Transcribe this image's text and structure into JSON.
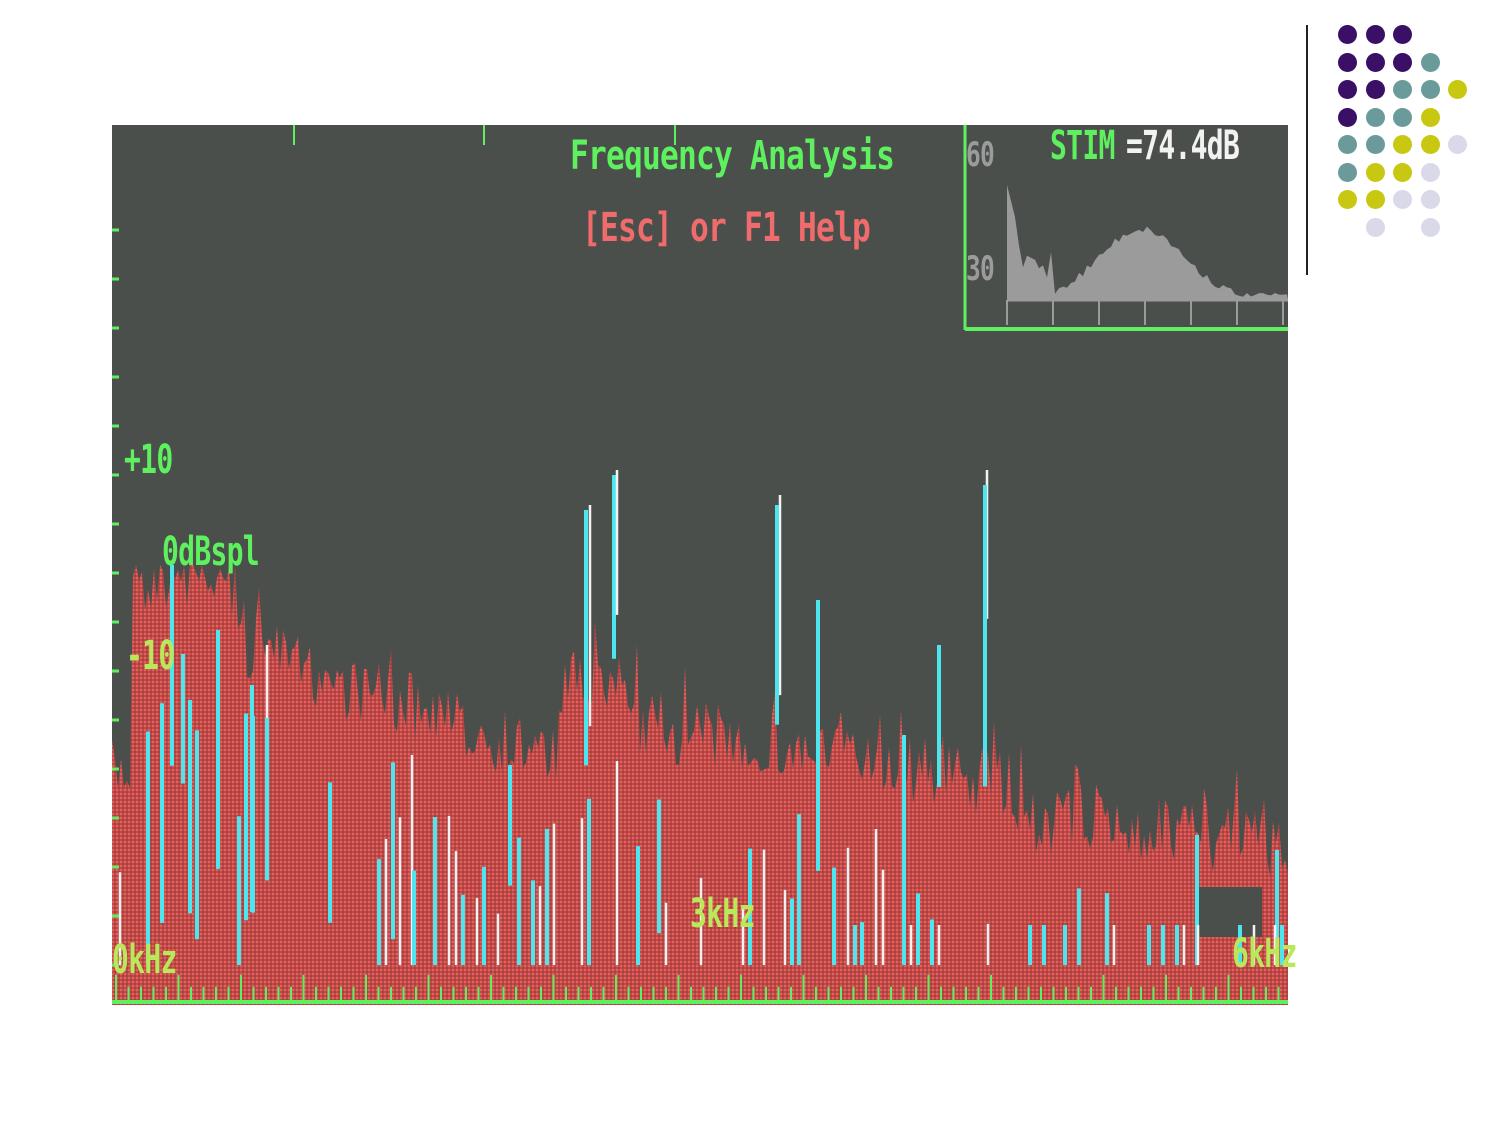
{
  "screen": {
    "title": "Frequency Analysis",
    "help": "[Esc] or F1 Help",
    "inset": {
      "label_60": "60",
      "label_30": "30",
      "stim_label": "STIM",
      "stim_value": "=74.4dB"
    },
    "y_labels": {
      "plus10": "+10",
      "zero": "0dBspl",
      "minus10": "-10"
    },
    "x_labels": {
      "zero": "0kHz",
      "three": "3kHz",
      "six": "6kHz"
    }
  },
  "colors": {
    "background": "#ffffff",
    "screen": "#4b4f4c",
    "green": "#5ef05e",
    "yellow_green": "#b9e85a",
    "red": "#f06b6b",
    "spectrum_red": "#c24a48",
    "cyan": "#4ee6ee",
    "white": "#f2f2f2",
    "gray": "#9b9b9b"
  },
  "decoration_dots": [
    [
      "#3a0f66",
      "#3a0f66",
      "#3a0f66",
      null,
      null
    ],
    [
      "#3a0f66",
      "#3a0f66",
      "#3a0f66",
      "#6b9a9a",
      null
    ],
    [
      "#3a0f66",
      "#3a0f66",
      "#6b9a9a",
      "#6b9a9a",
      "#c8c812"
    ],
    [
      "#3a0f66",
      "#6b9a9a",
      "#6b9a9a",
      "#c8c812",
      null
    ],
    [
      "#6b9a9a",
      "#6b9a9a",
      "#c8c812",
      "#c8c812",
      "#d9d9ea"
    ],
    [
      "#6b9a9a",
      "#c8c812",
      "#c8c812",
      "#d9d9ea",
      null
    ],
    [
      "#c8c812",
      "#c8c812",
      "#d9d9ea",
      "#d9d9ea",
      null
    ],
    [
      null,
      "#d9d9ea",
      null,
      "#d9d9ea",
      null
    ]
  ]
}
